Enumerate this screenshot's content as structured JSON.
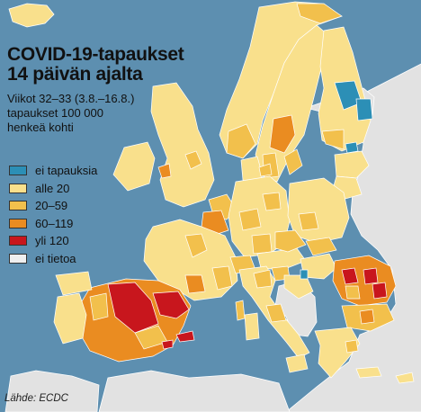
{
  "title_lines": [
    "COVID-19-tapaukset",
    "14 päivän ajalta"
  ],
  "subtitle_lines": [
    "Viikot 32–33 (3.8.–16.8.)",
    "tapaukset 100 000",
    "henkeä kohti"
  ],
  "legend": [
    {
      "label": "ei tapauksia",
      "color": "#2c8fb6"
    },
    {
      "label": "alle 20",
      "color": "#f9e08c"
    },
    {
      "label": "20–59",
      "color": "#f2c04c"
    },
    {
      "label": "60–119",
      "color": "#ea8c21"
    },
    {
      "label": "yli 120",
      "color": "#c8161d"
    },
    {
      "label": "ei tietoa",
      "color": "#efefef"
    }
  ],
  "source": "Lähde: ECDC",
  "colors": {
    "sea": "#5d8fb0",
    "no_data_land": "#e2e2e2",
    "border": "#ffffff"
  }
}
